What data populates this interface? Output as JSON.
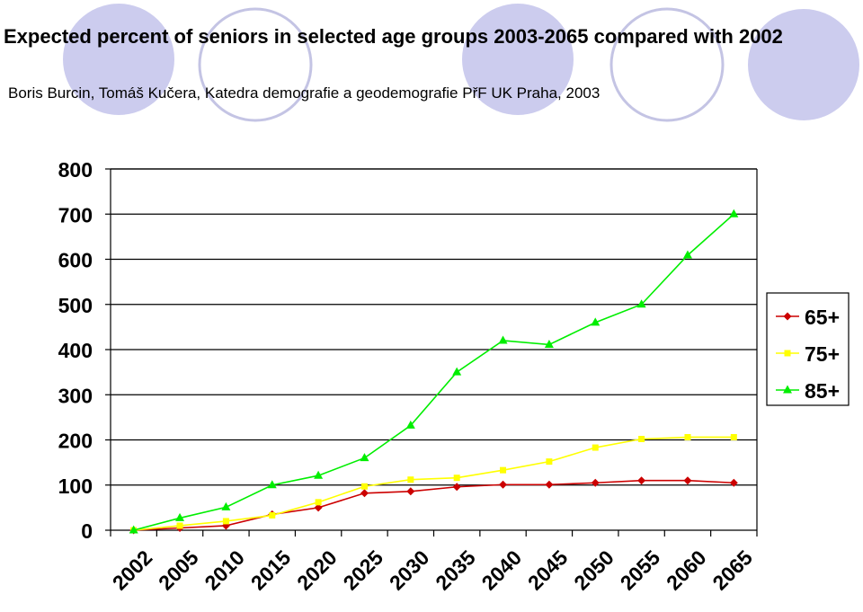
{
  "title": "Expected percent of seniors in selected age groups 2003-2065 compared with 2002",
  "subtitle": "Boris Burcin, Tomáš Kučera, Katedra demografie a geodemografie PřF UK Praha, 2003",
  "colors": {
    "circle_fill": "#ccccee",
    "circle_ring": "#b8b8dd",
    "grid": "#000000"
  },
  "chart_data": {
    "type": "line",
    "x_categories": [
      "2002",
      "2005",
      "2010",
      "2015",
      "2020",
      "2025",
      "2030",
      "2035",
      "2040",
      "2045",
      "2050",
      "2055",
      "2060",
      "2065"
    ],
    "ylim": [
      0,
      800
    ],
    "yticks": [
      "0",
      "100",
      "200",
      "300",
      "400",
      "500",
      "600",
      "700",
      "800"
    ],
    "grid": "horizontal",
    "legend_position": "right",
    "series": [
      {
        "name": "65+",
        "color": "#cc0000",
        "marker": "diamond",
        "values": [
          0,
          5,
          10,
          35,
          50,
          82,
          86,
          96,
          101,
          101,
          105,
          110,
          110,
          105
        ]
      },
      {
        "name": "75+",
        "color": "#ffff00",
        "marker": "square",
        "values": [
          0,
          10,
          20,
          33,
          62,
          97,
          112,
          116,
          133,
          152,
          183,
          202,
          206,
          206
        ]
      },
      {
        "name": "85+",
        "color": "#00ee00",
        "marker": "triangle",
        "values": [
          0,
          27,
          51,
          100,
          121,
          160,
          232,
          350,
          420,
          411,
          460,
          500,
          609,
          700
        ]
      }
    ]
  }
}
